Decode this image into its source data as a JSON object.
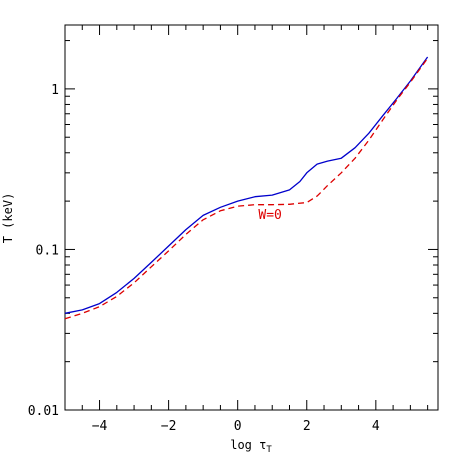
{
  "chart_data": {
    "type": "line",
    "title": "",
    "xlabel": "log τ",
    "xlabel_main": "log τ",
    "xlabel_sub": "T",
    "ylabel": "T (keV)",
    "xlim": [
      -5,
      5.8
    ],
    "ylim": [
      0.01,
      2.5
    ],
    "yscale": "log",
    "grid": false,
    "x_ticks": [
      -4,
      -2,
      0,
      2,
      4
    ],
    "x_tick_labels": [
      "−4",
      "−2",
      "0",
      "2",
      "4"
    ],
    "y_ticks": [
      0.01,
      0.1,
      1
    ],
    "y_tick_labels": [
      "0.01",
      "0.1",
      "1"
    ],
    "annotations": [
      {
        "text": "W=0",
        "x": 0.6,
        "y": 0.155,
        "color": "#dd0000"
      }
    ],
    "series": [
      {
        "name": "",
        "color": "#0000cc",
        "dash": "solid",
        "x": [
          -5.0,
          -4.5,
          -4.0,
          -3.5,
          -3.0,
          -2.5,
          -2.0,
          -1.5,
          -1.0,
          -0.5,
          0.0,
          0.5,
          1.0,
          1.5,
          1.8,
          2.0,
          2.3,
          2.6,
          3.0,
          3.4,
          3.8,
          4.2,
          4.6,
          5.0,
          5.5
        ],
        "y": [
          0.04,
          0.042,
          0.046,
          0.054,
          0.066,
          0.083,
          0.105,
          0.133,
          0.163,
          0.183,
          0.2,
          0.213,
          0.218,
          0.235,
          0.265,
          0.3,
          0.34,
          0.355,
          0.37,
          0.43,
          0.53,
          0.68,
          0.87,
          1.12,
          1.58
        ]
      },
      {
        "name": "W=0",
        "color": "#dd0000",
        "dash": "dashed",
        "x": [
          -5.0,
          -4.5,
          -4.0,
          -3.5,
          -3.0,
          -2.5,
          -2.0,
          -1.5,
          -1.0,
          -0.5,
          0.0,
          0.5,
          1.0,
          1.5,
          2.0,
          2.3,
          2.6,
          3.0,
          3.4,
          3.8,
          4.2,
          4.6,
          5.0,
          5.5
        ],
        "y": [
          0.037,
          0.04,
          0.044,
          0.051,
          0.062,
          0.078,
          0.098,
          0.124,
          0.153,
          0.174,
          0.186,
          0.19,
          0.19,
          0.191,
          0.196,
          0.215,
          0.25,
          0.3,
          0.37,
          0.48,
          0.64,
          0.85,
          1.1,
          1.55
        ]
      }
    ]
  }
}
